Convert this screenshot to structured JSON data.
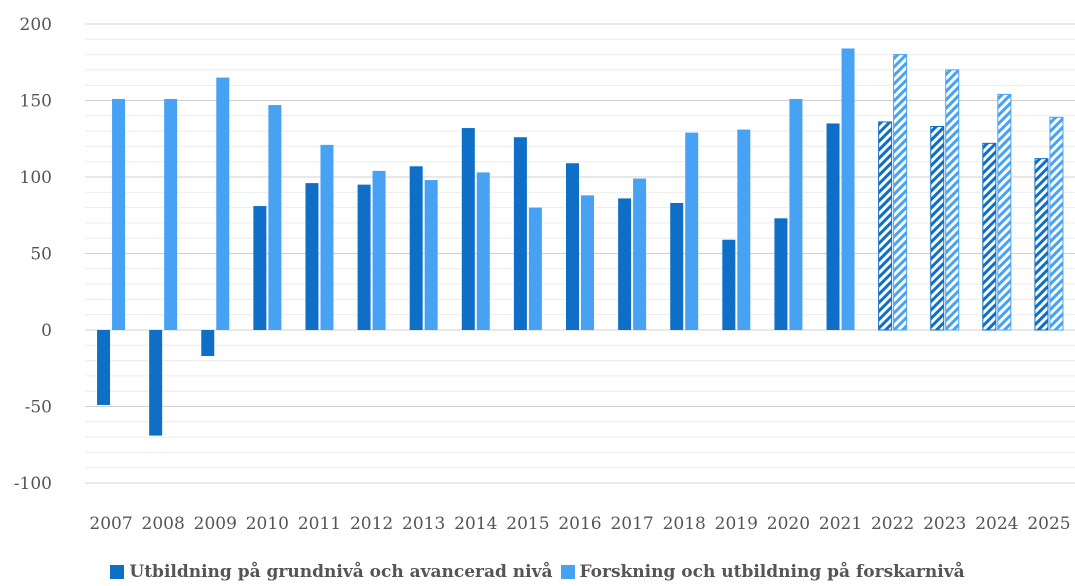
{
  "chart_data": {
    "type": "bar",
    "categories": [
      "2007",
      "2008",
      "2009",
      "2010",
      "2011",
      "2012",
      "2013",
      "2014",
      "2015",
      "2016",
      "2017",
      "2018",
      "2019",
      "2020",
      "2021",
      "2022",
      "2023",
      "2024",
      "2025"
    ],
    "series": [
      {
        "name": "Utbildning på grundnivå och avancerad nivå",
        "color": "#0f6fc6",
        "values": [
          -49,
          -69,
          -17,
          81,
          96,
          95,
          107,
          132,
          126,
          109,
          86,
          83,
          59,
          73,
          135,
          136,
          133,
          122,
          112
        ]
      },
      {
        "name": "Forskning och utbildning på forskarnivå",
        "color": "#47a2f4",
        "values": [
          151,
          151,
          165,
          147,
          121,
          104,
          98,
          103,
          80,
          88,
          99,
          129,
          131,
          151,
          184,
          180,
          170,
          154,
          139
        ]
      }
    ],
    "hatched_from_category": "2022",
    "ylim": [
      -100,
      200
    ],
    "yticks": [
      "-100",
      "-50",
      "0",
      "50",
      "100",
      "150",
      "200"
    ],
    "title": "",
    "xlabel": "",
    "ylabel": "",
    "grid": true,
    "legend_position": "bottom"
  }
}
